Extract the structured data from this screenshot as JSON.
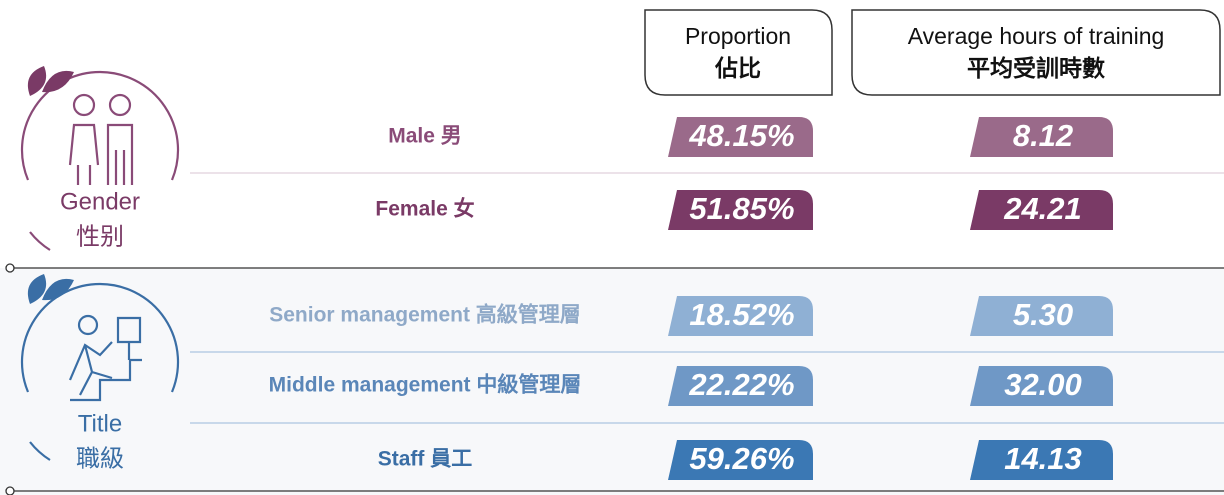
{
  "header": {
    "proportion": {
      "en": "Proportion",
      "zh": "佔比"
    },
    "hours": {
      "en": "Average hours of training",
      "zh": "平均受訓時數"
    }
  },
  "sections": [
    {
      "en": "Gender",
      "zh": "性别",
      "rows": [
        {
          "label": "Male 男",
          "proportion": "48.15%",
          "hours": "8.12",
          "color": "#9a6a8a",
          "label_color": "#8a4b78"
        },
        {
          "label": "Female 女",
          "proportion": "51.85%",
          "hours": "24.21",
          "color": "#7a3a66",
          "label_color": "#7a3a66"
        }
      ]
    },
    {
      "en": "Title",
      "zh": "職級",
      "rows": [
        {
          "label": "Senior management 高級管理層",
          "proportion": "18.52%",
          "hours": "5.30",
          "color": "#8fb0d4",
          "label_color": "#8fa9c8"
        },
        {
          "label": "Middle management 中級管理層",
          "proportion": "22.22%",
          "hours": "32.00",
          "color": "#6f98c6",
          "label_color": "#5a86b8"
        },
        {
          "label": "Staff 員工",
          "proportion": "59.26%",
          "hours": "14.13",
          "color": "#3b78b4",
          "label_color": "#3a6ea5"
        }
      ]
    }
  ]
}
